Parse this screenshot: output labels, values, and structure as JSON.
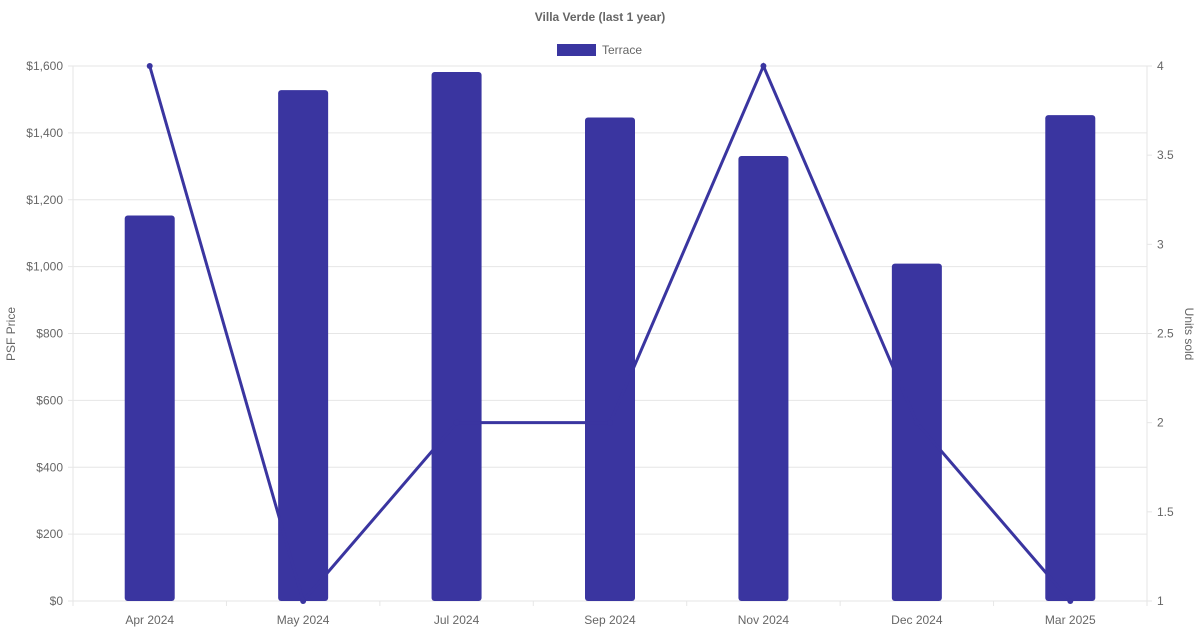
{
  "colors": {
    "series": "#3a35a0",
    "grid": "#e6e6e6",
    "text": "#666666"
  },
  "chart_data": {
    "type": "bar",
    "title": "Villa Verde (last 1 year)",
    "categories": [
      "Apr 2024",
      "May 2024",
      "Jul 2024",
      "Sep 2024",
      "Nov 2024",
      "Dec 2024",
      "Mar 2025"
    ],
    "series": [
      {
        "name": "Terrace",
        "type": "bar",
        "axis": "left",
        "values": [
          1153,
          1528,
          1582,
          1446,
          1331,
          1009,
          1453
        ]
      },
      {
        "type": "line",
        "axis": "right",
        "values": [
          4,
          1,
          2,
          2,
          4,
          2,
          1
        ]
      }
    ],
    "y_left": {
      "label": "PSF Price",
      "lim": [
        0,
        1600
      ],
      "ticks": [
        "$0",
        "$200",
        "$400",
        "$600",
        "$800",
        "$1,000",
        "$1,200",
        "$1,400",
        "$1,600"
      ],
      "tick_values": [
        0,
        200,
        400,
        600,
        800,
        1000,
        1200,
        1400,
        1600
      ]
    },
    "y_right": {
      "label": "Units sold",
      "lim": [
        1,
        4
      ],
      "ticks": [
        "1",
        "1.5",
        "2",
        "2.5",
        "3",
        "3.5",
        "4"
      ],
      "tick_values": [
        1,
        1.5,
        2,
        2.5,
        3,
        3.5,
        4
      ]
    },
    "legend": {
      "position": "top-center",
      "entries": [
        "Terrace"
      ]
    },
    "grid": true
  }
}
